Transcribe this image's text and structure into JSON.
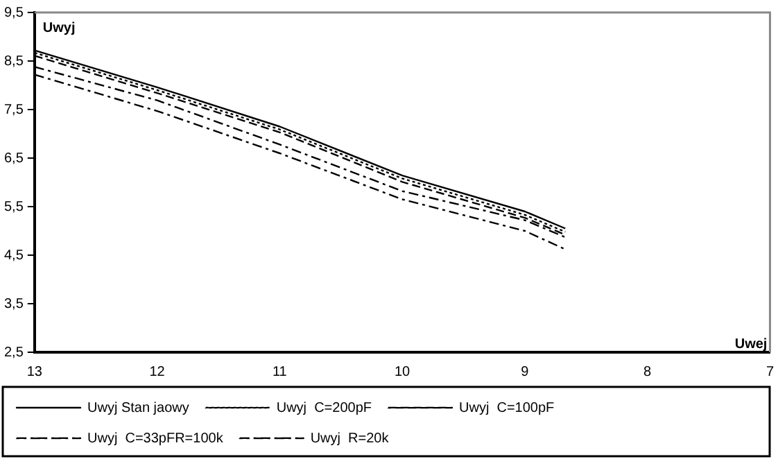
{
  "chart_data": {
    "type": "line",
    "xlabel": "Uwej",
    "ylabel": "Uwyj",
    "xlim": [
      13,
      7
    ],
    "xticks": [
      13,
      12,
      11,
      10,
      9,
      8,
      7
    ],
    "ylim": [
      2.5,
      9.5
    ],
    "yticks": [
      {
        "value": 2.5,
        "label": "2,5"
      },
      {
        "value": 3.5,
        "label": "3,5"
      },
      {
        "value": 4.5,
        "label": "4,5"
      },
      {
        "value": 5.5,
        "label": "5,5"
      },
      {
        "value": 6.5,
        "label": "6,5"
      },
      {
        "value": 7.5,
        "label": "7,5"
      },
      {
        "value": 8.5,
        "label": "8,5"
      },
      {
        "value": 9.5,
        "label": "9,5"
      }
    ],
    "grid": false,
    "legend": "bottom",
    "marker": "none",
    "x": [
      13,
      12,
      11,
      10,
      9,
      8.67
    ],
    "series": [
      {
        "name": "Uwyj Stan jaowy",
        "color": "#000000",
        "line_style": "solid",
        "values": [
          8.72,
          7.96,
          7.15,
          6.14,
          5.4,
          5.05
        ]
      },
      {
        "name": "Uwyj  C=200pF",
        "color": "#000000",
        "line_style": "dotted",
        "values": [
          8.67,
          7.9,
          7.09,
          6.08,
          5.33,
          4.98
        ]
      },
      {
        "name": "Uwyj  C=100pF",
        "color": "#000000",
        "line_style": "dashed",
        "values": [
          8.61,
          7.84,
          7.03,
          6.01,
          5.27,
          4.92
        ]
      },
      {
        "name": "Uwyj  C=33pFR=100k",
        "color": "#000000",
        "line_style": "dashdot",
        "values": [
          8.38,
          7.69,
          6.78,
          5.82,
          5.22,
          4.87
        ]
      },
      {
        "name": "Uwyj  R=20k",
        "color": "#000000",
        "line_style": "dashdot",
        "values": [
          8.22,
          7.47,
          6.6,
          5.65,
          5.0,
          4.62
        ]
      }
    ]
  }
}
